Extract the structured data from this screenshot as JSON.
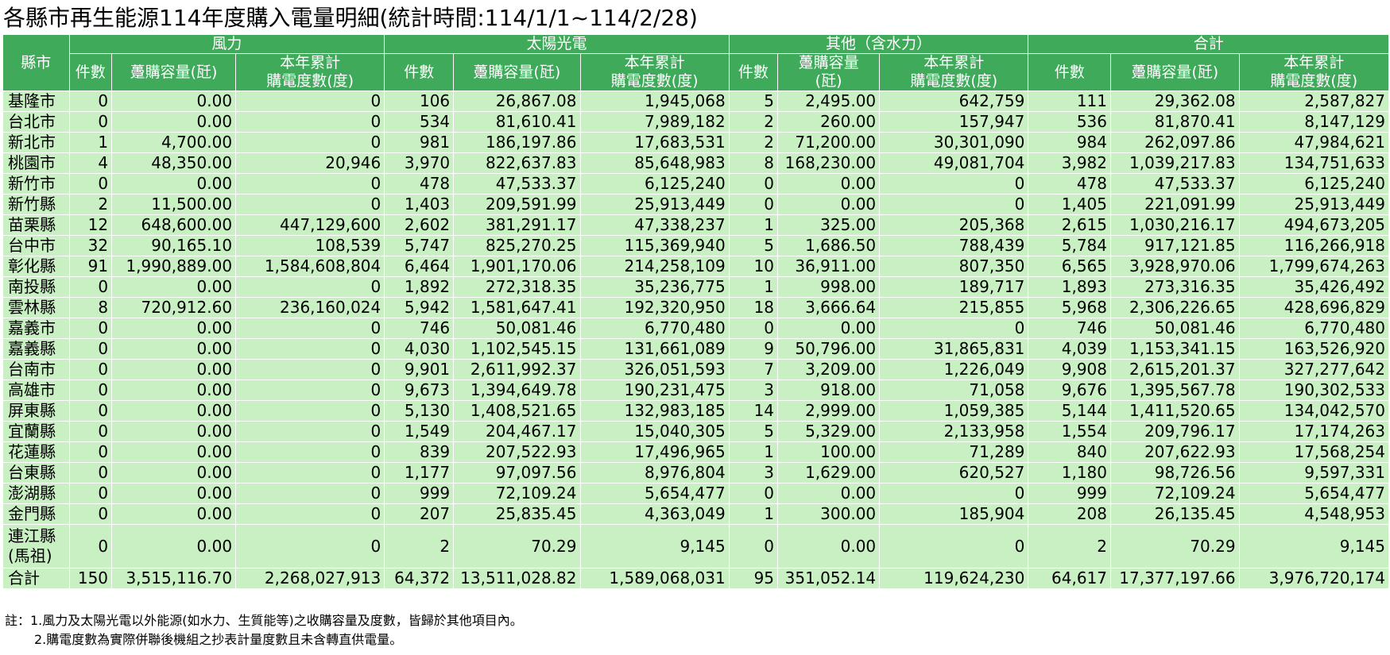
{
  "title": "各縣市再生能源114年度購入電量明細(統計時間:114/1/1~114/2/28)",
  "headers": {
    "county": "縣市",
    "groups": [
      "風力",
      "太陽光電",
      "其他（含水力）",
      "合計"
    ],
    "sub": [
      "件數",
      "躉購容量(瓩)",
      "本年累計\n購電度數(度)"
    ],
    "sub_other_capacity": "躉購容量\n(瓩)"
  },
  "rows": [
    {
      "name": "基隆市",
      "v": [
        "0",
        "0.00",
        "0",
        "106",
        "26,867.08",
        "1,945,068",
        "5",
        "2,495.00",
        "642,759",
        "111",
        "29,362.08",
        "2,587,827"
      ]
    },
    {
      "name": "台北市",
      "v": [
        "0",
        "0.00",
        "0",
        "534",
        "81,610.41",
        "7,989,182",
        "2",
        "260.00",
        "157,947",
        "536",
        "81,870.41",
        "8,147,129"
      ]
    },
    {
      "name": "新北市",
      "v": [
        "1",
        "4,700.00",
        "0",
        "981",
        "186,197.86",
        "17,683,531",
        "2",
        "71,200.00",
        "30,301,090",
        "984",
        "262,097.86",
        "47,984,621"
      ]
    },
    {
      "name": "桃園市",
      "v": [
        "4",
        "48,350.00",
        "20,946",
        "3,970",
        "822,637.83",
        "85,648,983",
        "8",
        "168,230.00",
        "49,081,704",
        "3,982",
        "1,039,217.83",
        "134,751,633"
      ]
    },
    {
      "name": "新竹市",
      "v": [
        "0",
        "0.00",
        "0",
        "478",
        "47,533.37",
        "6,125,240",
        "0",
        "0.00",
        "0",
        "478",
        "47,533.37",
        "6,125,240"
      ]
    },
    {
      "name": "新竹縣",
      "v": [
        "2",
        "11,500.00",
        "0",
        "1,403",
        "209,591.99",
        "25,913,449",
        "0",
        "0.00",
        "0",
        "1,405",
        "221,091.99",
        "25,913,449"
      ]
    },
    {
      "name": "苗栗縣",
      "v": [
        "12",
        "648,600.00",
        "447,129,600",
        "2,602",
        "381,291.17",
        "47,338,237",
        "1",
        "325.00",
        "205,368",
        "2,615",
        "1,030,216.17",
        "494,673,205"
      ]
    },
    {
      "name": "台中市",
      "v": [
        "32",
        "90,165.10",
        "108,539",
        "5,747",
        "825,270.25",
        "115,369,940",
        "5",
        "1,686.50",
        "788,439",
        "5,784",
        "917,121.85",
        "116,266,918"
      ]
    },
    {
      "name": "彰化縣",
      "v": [
        "91",
        "1,990,889.00",
        "1,584,608,804",
        "6,464",
        "1,901,170.06",
        "214,258,109",
        "10",
        "36,911.00",
        "807,350",
        "6,565",
        "3,928,970.06",
        "1,799,674,263"
      ]
    },
    {
      "name": "南投縣",
      "v": [
        "0",
        "0.00",
        "0",
        "1,892",
        "272,318.35",
        "35,236,775",
        "1",
        "998.00",
        "189,717",
        "1,893",
        "273,316.35",
        "35,426,492"
      ]
    },
    {
      "name": "雲林縣",
      "v": [
        "8",
        "720,912.60",
        "236,160,024",
        "5,942",
        "1,581,647.41",
        "192,320,950",
        "18",
        "3,666.64",
        "215,855",
        "5,968",
        "2,306,226.65",
        "428,696,829"
      ]
    },
    {
      "name": "嘉義市",
      "v": [
        "0",
        "0.00",
        "0",
        "746",
        "50,081.46",
        "6,770,480",
        "0",
        "0.00",
        "0",
        "746",
        "50,081.46",
        "6,770,480"
      ]
    },
    {
      "name": "嘉義縣",
      "v": [
        "0",
        "0.00",
        "0",
        "4,030",
        "1,102,545.15",
        "131,661,089",
        "9",
        "50,796.00",
        "31,865,831",
        "4,039",
        "1,153,341.15",
        "163,526,920"
      ]
    },
    {
      "name": "台南市",
      "v": [
        "0",
        "0.00",
        "0",
        "9,901",
        "2,611,992.37",
        "326,051,593",
        "7",
        "3,209.00",
        "1,226,049",
        "9,908",
        "2,615,201.37",
        "327,277,642"
      ]
    },
    {
      "name": "高雄市",
      "v": [
        "0",
        "0.00",
        "0",
        "9,673",
        "1,394,649.78",
        "190,231,475",
        "3",
        "918.00",
        "71,058",
        "9,676",
        "1,395,567.78",
        "190,302,533"
      ]
    },
    {
      "name": "屏東縣",
      "v": [
        "0",
        "0.00",
        "0",
        "5,130",
        "1,408,521.65",
        "132,983,185",
        "14",
        "2,999.00",
        "1,059,385",
        "5,144",
        "1,411,520.65",
        "134,042,570"
      ]
    },
    {
      "name": "宜蘭縣",
      "v": [
        "0",
        "0.00",
        "0",
        "1,549",
        "204,467.17",
        "15,040,305",
        "5",
        "5,329.00",
        "2,133,958",
        "1,554",
        "209,796.17",
        "17,174,263"
      ]
    },
    {
      "name": "花蓮縣",
      "v": [
        "0",
        "0.00",
        "0",
        "839",
        "207,522.93",
        "17,496,965",
        "1",
        "100.00",
        "71,289",
        "840",
        "207,622.93",
        "17,568,254"
      ]
    },
    {
      "name": "台東縣",
      "v": [
        "0",
        "0.00",
        "0",
        "1,177",
        "97,097.56",
        "8,976,804",
        "3",
        "1,629.00",
        "620,527",
        "1,180",
        "98,726.56",
        "9,597,331"
      ]
    },
    {
      "name": "澎湖縣",
      "v": [
        "0",
        "0.00",
        "0",
        "999",
        "72,109.24",
        "5,654,477",
        "0",
        "0.00",
        "0",
        "999",
        "72,109.24",
        "5,654,477"
      ]
    },
    {
      "name": "金門縣",
      "v": [
        "0",
        "0.00",
        "0",
        "207",
        "25,835.45",
        "4,363,049",
        "1",
        "300.00",
        "185,904",
        "208",
        "26,135.45",
        "4,548,953"
      ]
    },
    {
      "name": "連江縣\n(馬祖)",
      "tall": true,
      "v": [
        "0",
        "0.00",
        "0",
        "2",
        "70.29",
        "9,145",
        "0",
        "0.00",
        "0",
        "2",
        "70.29",
        "9,145"
      ]
    },
    {
      "name": "合計",
      "total": true,
      "v": [
        "150",
        "3,515,116.70",
        "2,268,027,913",
        "64,372",
        "13,511,028.82",
        "1,589,068,031",
        "95",
        "351,052.14",
        "119,624,230",
        "64,617",
        "17,377,197.66",
        "3,976,720,174"
      ]
    }
  ],
  "notes": [
    "註：1.風力及太陽光電以外能源(如水力、生質能等)之收購容量及度數，皆歸於其他項目內。",
    "2.購電度數為實際併聯後機組之抄表計量度數且未含轉直供電量。"
  ]
}
